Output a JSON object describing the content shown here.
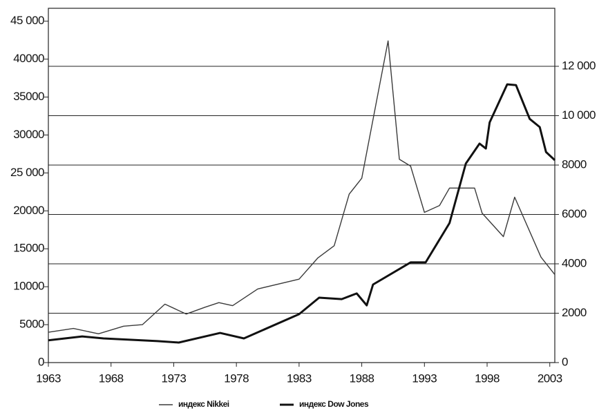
{
  "chart_data": {
    "type": "line",
    "xlim": [
      1963,
      2003.4
    ],
    "xticks": [
      1963,
      1968,
      1973,
      1978,
      1983,
      1988,
      1993,
      1998,
      2003
    ],
    "ylim": [
      0,
      46700
    ],
    "yticks": [
      0,
      5000,
      10000,
      15000,
      20000,
      {
        "value": 25000,
        "label": "25 000"
      },
      30000,
      35000,
      40000,
      {
        "value": 45000,
        "label": "45 000"
      }
    ],
    "y2lim": [
      0,
      14350
    ],
    "y2ticks": [
      0,
      2000,
      4000,
      6000,
      8000,
      {
        "value": 10000,
        "label": "10 000"
      },
      {
        "value": 12000,
        "label": "12 000"
      }
    ],
    "grid": true,
    "legend": "bottom",
    "series": [
      {
        "name": "индекс Nikkei",
        "color": "#3a3a3a",
        "width": 1.4,
        "x": [
          1963,
          1965,
          1967,
          1969,
          1970.5,
          1972.3,
          1974,
          1975.5,
          1976.6,
          1977.7,
          1979.7,
          1983,
          1984.5,
          1985.8,
          1987,
          1988,
          1990.1,
          1991,
          1991.9,
          1993,
          1994.2,
          1995,
          1997,
          1997.6,
          1999.3,
          2000.2,
          2002.3,
          2003.4
        ],
        "values": [
          4000,
          4500,
          3800,
          4800,
          5000,
          7700,
          6400,
          7300,
          7900,
          7500,
          9700,
          11000,
          13800,
          15400,
          22200,
          24300,
          42400,
          26800,
          25900,
          19800,
          20700,
          23000,
          23000,
          19700,
          16600,
          21800,
          13900,
          11600
        ]
      },
      {
        "name": "индекс Dow Jones",
        "color": "#111111",
        "width": 3,
        "axis": "y2",
        "x": [
          1963,
          1965.7,
          1967.4,
          1971.7,
          1973.4,
          1976.7,
          1978.6,
          1983,
          1984.6,
          1986.4,
          1987.6,
          1988.4,
          1988.9,
          1991.9,
          1993.1,
          1995,
          1996.3,
          1997.4,
          1997.9,
          1998.2,
          1999.6,
          2000.3,
          2001.4,
          2002.2,
          2002.7,
          2003.4
        ],
        "values": [
          900,
          1060,
          980,
          870,
          810,
          1200,
          980,
          1960,
          2630,
          2570,
          2800,
          2320,
          3160,
          4060,
          4060,
          5650,
          8060,
          8870,
          8670,
          9730,
          11270,
          11240,
          9870,
          9540,
          8530,
          8200
        ]
      }
    ]
  }
}
